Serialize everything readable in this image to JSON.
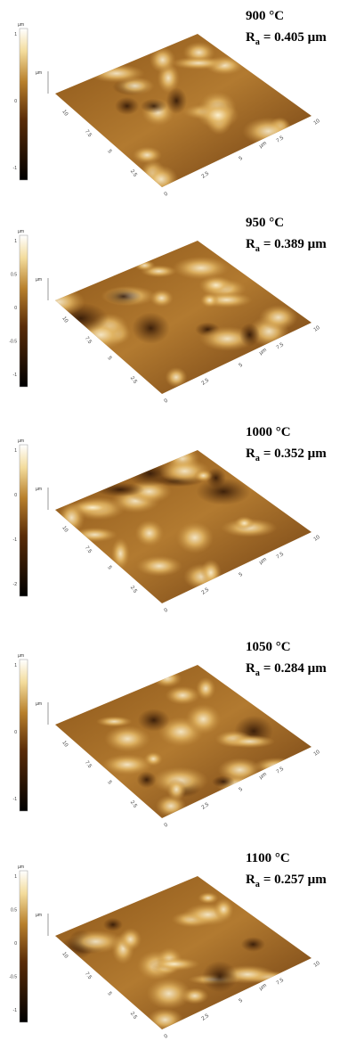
{
  "axis_unit": "µm",
  "axis_ticks": [
    "0",
    "2.5",
    "5",
    "7.5",
    "10"
  ],
  "panels": [
    {
      "temperature": "900 °C",
      "ra_symbol": "R",
      "ra_subscript": "a",
      "ra_value": "= 0.405 µm",
      "colorbar_unit": "µm",
      "colorbar_ticks": [
        "1",
        "0",
        "-1"
      ]
    },
    {
      "temperature": "950 °C",
      "ra_symbol": "R",
      "ra_subscript": "a",
      "ra_value": "= 0.389 µm",
      "colorbar_unit": "µm",
      "colorbar_ticks": [
        "1",
        "0.5",
        "0",
        "-0.5",
        "-1"
      ]
    },
    {
      "temperature": "1000 °C",
      "ra_symbol": "R",
      "ra_subscript": "a",
      "ra_value": "= 0.352 µm",
      "colorbar_unit": "µm",
      "colorbar_ticks": [
        "1",
        "0",
        "-1",
        "-2"
      ]
    },
    {
      "temperature": "1050 °C",
      "ra_symbol": "R",
      "ra_subscript": "a",
      "ra_value": "= 0.284 µm",
      "colorbar_unit": "µm",
      "colorbar_ticks": [
        "1",
        "0",
        "-1"
      ]
    },
    {
      "temperature": "1100 °C",
      "ra_symbol": "R",
      "ra_subscript": "a",
      "ra_value": "= 0.257 µm",
      "colorbar_unit": "µm",
      "colorbar_ticks": [
        "1",
        "0.5",
        "0",
        "-0.5",
        "-1"
      ]
    }
  ]
}
